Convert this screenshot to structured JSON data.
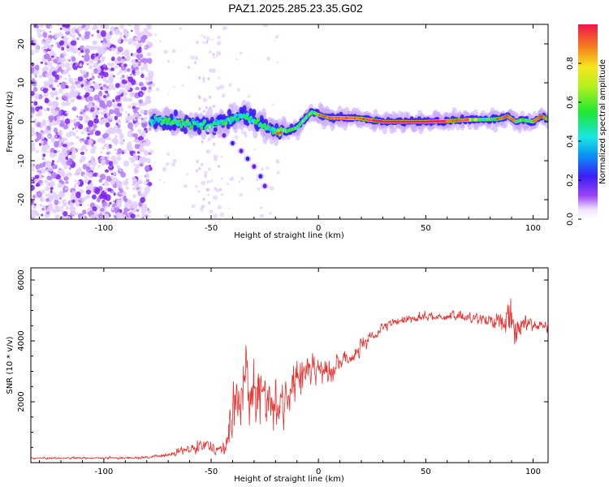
{
  "title": "PAZ1.2025.285.23.35.G02",
  "colors": {
    "snr_line": "#e8312f",
    "ridge": "#e8312f",
    "axis": "#000000"
  },
  "chart_data": [
    {
      "type": "heatmap",
      "title": "PAZ1.2025.285.23.35.G02",
      "xlabel": "Height of straight line (km)",
      "ylabel": "Frequency (Hz)",
      "xlim": [
        -134,
        107
      ],
      "ylim": [
        -25,
        25
      ],
      "xticks": [
        -100,
        -50,
        0,
        50,
        100
      ],
      "yticks": [
        -20,
        -10,
        0,
        10,
        20
      ],
      "x_ticklabels": [
        "-100",
        "-50",
        "0",
        "50",
        "100"
      ],
      "y_ticklabels": [
        "-20",
        "-10",
        "0",
        "10",
        "20"
      ],
      "ridge": {
        "x": [
          -78,
          -70,
          -60,
          -50,
          -42,
          -35,
          -30,
          -25,
          -19,
          -15,
          -10,
          -5,
          -3,
          0,
          5,
          10,
          20,
          30,
          40,
          50,
          60,
          70,
          80,
          85,
          88,
          92,
          95,
          100,
          104,
          107
        ],
        "y": [
          0.5,
          0.3,
          -0.5,
          -1.0,
          0.5,
          1.5,
          0.5,
          -1.0,
          -3.0,
          -2.5,
          -1.5,
          1.5,
          2.5,
          1.8,
          1.0,
          1.0,
          0.8,
          0.0,
          0.0,
          0.0,
          0.2,
          0.5,
          0.6,
          0.8,
          1.5,
          0.0,
          0.5,
          0.0,
          1.5,
          0.5
        ]
      },
      "branch": {
        "x": [
          -48,
          -44,
          -40,
          -36,
          -33,
          -30,
          -27,
          -25
        ],
        "y": [
          -2.0,
          -3.5,
          -5.5,
          -7.5,
          -9.5,
          -11.5,
          -14.0,
          -16.5
        ]
      },
      "noise_region_x": [
        -134,
        -78
      ],
      "colorbar": {
        "label": "Normalized spectral amplitude",
        "range": [
          0,
          1
        ],
        "ticks": [
          "0.0",
          "0.2",
          "0.4",
          "0.6",
          "0.8"
        ],
        "tick_values": [
          0.0,
          0.2,
          0.4,
          0.6,
          0.8
        ]
      }
    },
    {
      "type": "line",
      "xlabel": "Height of straight line (km)",
      "ylabel": "SNR (10 * v/v)",
      "xlim": [
        -134,
        107
      ],
      "ylim": [
        0,
        6400
      ],
      "xticks": [
        -100,
        -50,
        0,
        50,
        100
      ],
      "yticks": [
        2000,
        4000,
        6000
      ],
      "x_ticklabels": [
        "-100",
        "-50",
        "0",
        "50",
        "100"
      ],
      "y_ticklabels": [
        "2000",
        "4000",
        "6000"
      ],
      "series": [
        {
          "name": "SNR",
          "envelope": {
            "x": [
              -134,
              -100,
              -80,
              -70,
              -60,
              -55,
              -50,
              -45,
              -42,
              -40,
              -38,
              -35,
              -32,
              -28,
              -25,
              -20,
              -15,
              -12,
              -10,
              -5,
              0,
              5,
              10,
              15,
              20,
              25,
              30,
              35,
              40,
              45,
              50,
              55,
              60,
              65,
              70,
              75,
              80,
              85,
              88,
              90,
              92,
              95,
              100,
              107
            ],
            "mean": [
              150,
              150,
              170,
              250,
              450,
              650,
              550,
              400,
              800,
              1700,
              2000,
              2500,
              2400,
              2200,
              2100,
              2000,
              1900,
              2600,
              2800,
              3000,
              3050,
              3150,
              3250,
              3500,
              3800,
              4100,
              4400,
              4600,
              4700,
              4750,
              4800,
              4800,
              4800,
              4800,
              4780,
              4750,
              4700,
              4650,
              4650,
              5200,
              4000,
              4650,
              4550,
              4450
            ],
            "spread": [
              40,
              40,
              50,
              80,
              200,
              300,
              250,
              200,
              600,
              1300,
              1400,
              1300,
              1300,
              1200,
              1100,
              1000,
              900,
              800,
              700,
              650,
              600,
              550,
              500,
              400,
              300,
              260,
              230,
              200,
              180,
              170,
              170,
              170,
              170,
              190,
              200,
              220,
              250,
              450,
              600,
              1000,
              600,
              300,
              250,
              200
            ]
          }
        }
      ]
    }
  ]
}
